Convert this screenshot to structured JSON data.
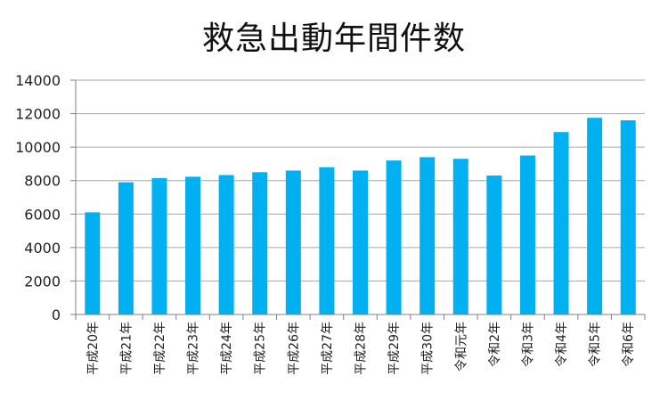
{
  "chart_data": {
    "type": "bar",
    "title": "救急出動年間件数",
    "categories": [
      "平成20年",
      "平成21年",
      "平成22年",
      "平成23年",
      "平成24年",
      "平成25年",
      "平成26年",
      "平成27年",
      "平成28年",
      "平成29年",
      "平成30年",
      "令和元年",
      "令和2年",
      "令和3年",
      "令和4年",
      "令和5年",
      "令和6年"
    ],
    "values": [
      6100,
      7900,
      8150,
      8230,
      8330,
      8500,
      8600,
      8800,
      8600,
      9200,
      9400,
      9300,
      8300,
      9500,
      10900,
      11750,
      11600
    ],
    "ylim": [
      0,
      14000
    ],
    "yticks": [
      "0",
      "2000",
      "4000",
      "6000",
      "8000",
      "10000",
      "12000",
      "14000"
    ],
    "grid": true,
    "legend": "none",
    "bar_color": "#00b0f0",
    "grid_color": "#a6a6a6"
  }
}
